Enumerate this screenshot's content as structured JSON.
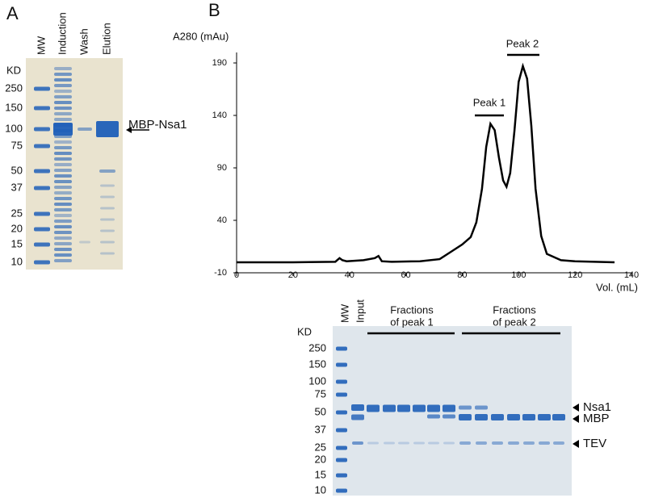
{
  "panel_a": {
    "label": "A",
    "kd": "KD",
    "lanes": [
      "MW",
      "Induction",
      "Wash",
      "Elution"
    ],
    "markers": [
      "250",
      "150",
      "100",
      "75",
      "50",
      "37",
      "25",
      "20",
      "15",
      "10"
    ],
    "arrow_label": "MBP-Nsa1"
  },
  "panel_b": {
    "label": "B"
  },
  "chart_data": {
    "type": "line",
    "y_label": "A280 (mAu)",
    "x_label": "Vol. (mL)",
    "x": [
      0,
      20,
      35,
      36.5,
      37.5,
      39,
      45,
      49,
      50.3,
      51.5,
      55,
      65,
      72,
      76,
      80,
      83,
      85,
      87,
      88.5,
      90,
      91.5,
      93,
      94.5,
      95.7,
      97,
      98.5,
      100,
      101.5,
      103,
      104.5,
      106,
      108,
      110,
      115,
      120,
      134
    ],
    "y": [
      0,
      0,
      0.5,
      4,
      2,
      1,
      2,
      4,
      6,
      1,
      0.5,
      1,
      3,
      10,
      17,
      24,
      38,
      70,
      110,
      132,
      126,
      100,
      78,
      72,
      85,
      125,
      172,
      187,
      175,
      130,
      70,
      25,
      8,
      2,
      1,
      0
    ],
    "xlim": [
      0,
      140
    ],
    "ylim": [
      -10,
      200
    ],
    "xticks": [
      0,
      20,
      40,
      60,
      80,
      100,
      120,
      140
    ],
    "yticks": [
      -10,
      40,
      90,
      140,
      190
    ],
    "color": "#000000",
    "annotations": [
      "Peak 1",
      "Peak 2"
    ]
  },
  "panel_c": {
    "kd": "KD",
    "lanes": [
      "MW",
      "Input"
    ],
    "group_1": [
      "Fractions",
      "of peak 1"
    ],
    "group_2": [
      "Fractions",
      "of peak 2"
    ],
    "markers": [
      "250",
      "150",
      "100",
      "75",
      "50",
      "37",
      "25",
      "20",
      "15",
      "10"
    ],
    "band_labels": [
      "Nsa1",
      "MBP",
      "TEV"
    ]
  }
}
